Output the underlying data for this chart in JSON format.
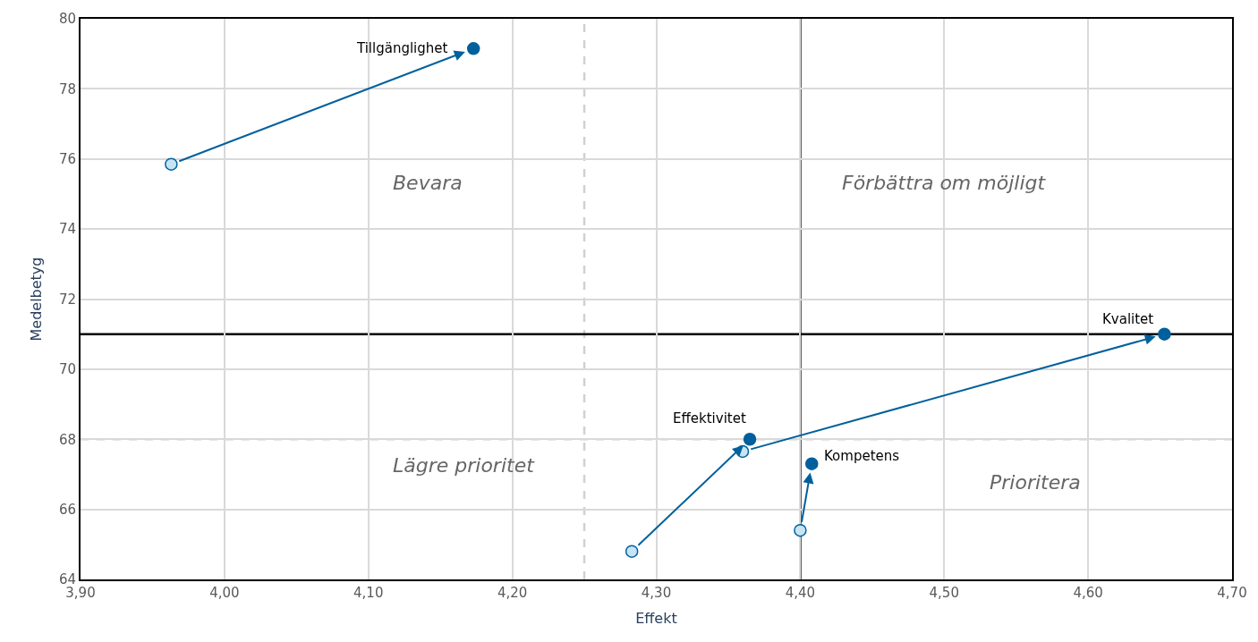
{
  "chart_data": {
    "type": "scatter",
    "xlabel": "Effekt",
    "ylabel": "Medelbetyg",
    "series": [
      {
        "color": "#c6e4f4",
        "x": [
          3.963,
          4.283,
          4.36,
          4.4
        ],
        "values": [
          75.85,
          64.8,
          67.65,
          65.4
        ]
      },
      {
        "color": "#00609c",
        "x": [
          4.173,
          4.365,
          4.653,
          4.408
        ],
        "values": [
          79.15,
          68.0,
          71.0,
          67.3
        ]
      }
    ],
    "annotations": [
      {
        "text": "Tillgänglighet",
        "x": 4.173,
        "y": 79.15
      },
      {
        "text": "Effektivitet",
        "x": 4.365,
        "y": 68.0
      },
      {
        "text": "Kvalitet",
        "x": 4.653,
        "y": 71.0
      },
      {
        "text": "Kompetens",
        "x": 4.408,
        "y": 67.3
      },
      "Bevara",
      "Förbättra om möjligt",
      "Lägre prioritet",
      "Prioritera"
    ],
    "ref_lines": [
      {
        "axis": "x",
        "value": 4.25,
        "color": "#d0d0d0",
        "line_style": "dashed"
      },
      {
        "axis": "y",
        "value": 68,
        "color": "#d0d0d0",
        "line_style": "dashed"
      },
      {
        "axis": "x",
        "value": 4.4,
        "color": "#000000",
        "line_style": "solid"
      },
      {
        "axis": "y",
        "value": 71,
        "color": "#000000",
        "line_style": "solid"
      }
    ],
    "xlim": [
      3.9,
      4.7
    ],
    "xticks": [
      {
        "value": 3.9,
        "label": "3,90"
      },
      {
        "value": 4.0,
        "label": "4,00"
      },
      {
        "value": 4.1,
        "label": "4,10"
      },
      {
        "value": 4.2,
        "label": "4,20"
      },
      {
        "value": 4.3,
        "label": "4,30"
      },
      {
        "value": 4.4,
        "label": "4,40"
      },
      {
        "value": 4.5,
        "label": "4,50"
      },
      {
        "value": 4.6,
        "label": "4,60"
      },
      {
        "value": 4.7,
        "label": "4,70"
      }
    ],
    "ylim": [
      64,
      80
    ],
    "yticks": [
      64,
      66,
      68,
      70,
      72,
      74,
      76,
      78,
      80
    ],
    "grid": true,
    "marker": "circle"
  }
}
